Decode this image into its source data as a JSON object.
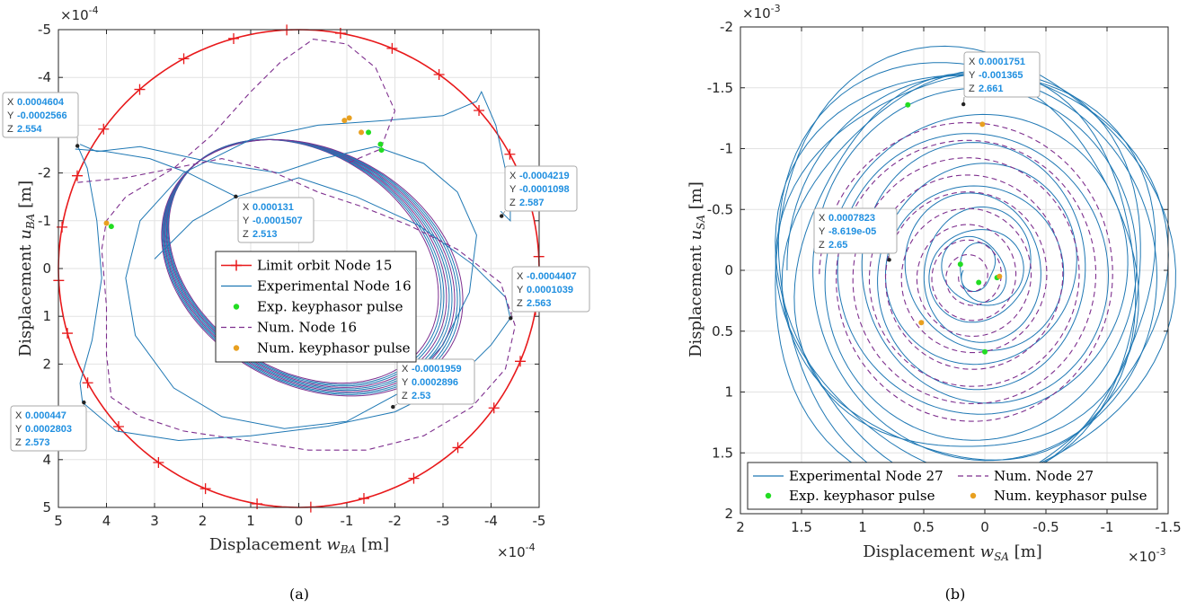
{
  "chart_data": [
    {
      "type": "line",
      "panel": "(a)",
      "xlabel": "Displacement w_BA [m]",
      "ylabel": "Displacement u_BA [m]",
      "x_exponent": "×10^-4",
      "y_exponent": "×10^-4",
      "x_label_parts": {
        "pre": "Displacement ",
        "sym": "w",
        "sub": "BA",
        "post": " [m]"
      },
      "y_label_parts": {
        "pre": "Displacement ",
        "sym": "u",
        "sub": "BA",
        "post": " [m]"
      },
      "xlim": [
        5,
        -5
      ],
      "ylim": [
        5,
        -5
      ],
      "x_reversed": true,
      "y_reversed": true,
      "xticks": [
        "5",
        "4",
        "3",
        "2",
        "1",
        "0",
        "-1",
        "-2",
        "-3",
        "-4",
        "-5"
      ],
      "yticks": [
        "-5",
        "-4",
        "-3",
        "-2",
        "-1",
        "0",
        "1",
        "2",
        "3",
        "4",
        "5"
      ],
      "grid": true,
      "legend": {
        "placement": "center",
        "entries": [
          {
            "label": "Limit orbit Node 15",
            "style": "red-plus"
          },
          {
            "label": "Experimental Node 16",
            "style": "blue-line"
          },
          {
            "label": "Exp. keyphasor pulse",
            "style": "green-dot"
          },
          {
            "label": "Num. Node 16",
            "style": "purple-dash"
          },
          {
            "label": "Num. keyphasor pulse",
            "style": "orange-dot"
          }
        ]
      },
      "series": [
        {
          "name": "Limit orbit Node 15",
          "kind": "circle",
          "radius": 5,
          "center": [
            0,
            0
          ]
        },
        {
          "name": "Experimental Node 16",
          "kind": "orbit"
        },
        {
          "name": "Num. Node 16",
          "kind": "orbit"
        }
      ],
      "keyphasor_exp": [
        [
          3.9,
          -0.88
        ],
        [
          -1.7,
          -2.6
        ],
        [
          -1.72,
          -2.48
        ],
        [
          -1.45,
          -2.85
        ]
      ],
      "keyphasor_num": [
        [
          4.0,
          -0.95
        ],
        [
          -0.95,
          -3.1
        ],
        [
          -1.05,
          -3.15
        ],
        [
          -1.3,
          -2.85
        ]
      ],
      "datatips": [
        {
          "X": "0.0004604",
          "Y": "-0.0002566",
          "Z": "2.554",
          "point": [
            4.604,
            -2.566
          ],
          "anchor": "left"
        },
        {
          "X": "0.000131",
          "Y": "-0.0001507",
          "Z": "2.513",
          "point": [
            1.31,
            -1.507
          ],
          "anchor": "right"
        },
        {
          "X": "-0.0004219",
          "Y": "-0.0001098",
          "Z": "2.587",
          "point": [
            -4.219,
            -1.098
          ],
          "anchor": "up"
        },
        {
          "X": "-0.0004407",
          "Y": "0.0001039",
          "Z": "2.563",
          "point": [
            -4.407,
            1.039
          ],
          "anchor": "up"
        },
        {
          "X": "-0.0001959",
          "Y": "0.0002896",
          "Z": "2.53",
          "point": [
            -1.959,
            2.896
          ],
          "anchor": "up"
        },
        {
          "X": "0.000447",
          "Y": "0.0002803",
          "Z": "2.573",
          "point": [
            4.47,
            2.803
          ],
          "anchor": "down"
        }
      ],
      "caption": "(a)"
    },
    {
      "type": "line",
      "panel": "(b)",
      "xlabel": "Displacement w_SA [m]",
      "ylabel": "Displacement u_SA [m]",
      "x_exponent": "×10^-3",
      "y_exponent": "×10^-3",
      "x_label_parts": {
        "pre": "Displacement ",
        "sym": "w",
        "sub": "SA",
        "post": " [m]"
      },
      "y_label_parts": {
        "pre": "Displacement ",
        "sym": "u",
        "sub": "SA",
        "post": " [m]"
      },
      "xlim": [
        2,
        -1.5
      ],
      "ylim": [
        2,
        -2
      ],
      "x_reversed": true,
      "y_reversed": true,
      "xticks": [
        "2",
        "1.5",
        "1",
        "0.5",
        "0",
        "-0.5",
        "-1",
        "-1.5"
      ],
      "yticks": [
        "-2",
        "-1.5",
        "-1",
        "-0.5",
        "0",
        "0.5",
        "1",
        "1.5",
        "2"
      ],
      "grid": true,
      "legend": {
        "placement": "bottom",
        "entries": [
          {
            "label": "Experimental Node 27",
            "style": "blue-line"
          },
          {
            "label": "Num. Node 27",
            "style": "purple-dash"
          },
          {
            "label": "Exp. keyphasor pulse",
            "style": "green-dot"
          },
          {
            "label": "Num. keyphasor pulse",
            "style": "orange-dot"
          }
        ]
      },
      "series": [
        {
          "name": "Experimental Node 27",
          "kind": "spiral"
        },
        {
          "name": "Num. Node 27",
          "kind": "spiral"
        }
      ],
      "keyphasor_exp": [
        [
          0.63,
          -1.36
        ],
        [
          0.2,
          -0.05
        ],
        [
          0.05,
          0.1
        ],
        [
          -0.1,
          0.06
        ],
        [
          0.0,
          0.67
        ]
      ],
      "keyphasor_num": [
        [
          0.02,
          -1.2
        ],
        [
          0.52,
          0.43
        ],
        [
          -0.12,
          0.05
        ]
      ],
      "datatips": [
        {
          "X": "0.0001751",
          "Y": "-0.001365",
          "Z": "2.661",
          "point": [
            0.1751,
            -1.365
          ],
          "anchor": "up"
        },
        {
          "X": "0.0007823",
          "Y": "-8.619e-05",
          "Z": "2.65",
          "point": [
            0.7823,
            -0.0862
          ],
          "anchor": "up"
        }
      ],
      "caption": "(b)"
    }
  ],
  "colors": {
    "limit": "#e8191b",
    "exp": "#1f78b4",
    "num": "#7e2f8e",
    "exp_key": "#22dd22",
    "num_key": "#e8a020",
    "grid": "#e2e2e2"
  }
}
